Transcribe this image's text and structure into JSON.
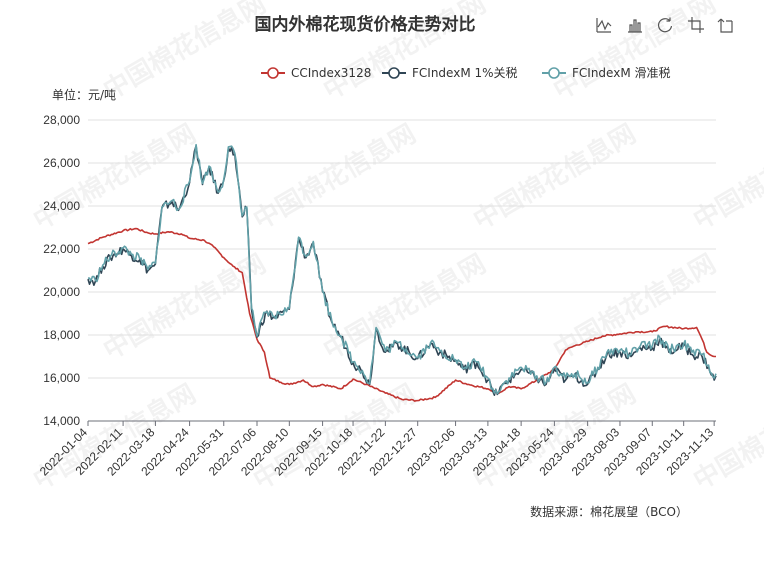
{
  "toolbox": {
    "icons": [
      "line-chart-icon",
      "bar-chart-icon",
      "restore-icon",
      "data-zoom-icon",
      "zoom-reset-icon"
    ]
  },
  "watermark_text": "中国棉花信息网",
  "chart_data": {
    "type": "line",
    "title": "国内外棉花现货价格走势对比",
    "unit_label": "单位：元/吨",
    "source": "数据来源：棉花展望（BCO）",
    "x_range": [
      "2022-01-04",
      "2023-11-15"
    ],
    "x_ticks": [
      "2022-01-04",
      "2022-02-11",
      "2022-03-18",
      "2022-04-24",
      "2022-05-31",
      "2022-07-06",
      "2022-08-10",
      "2022-09-15",
      "2022-10-18",
      "2022-11-22",
      "2022-12-27",
      "2023-02-06",
      "2023-03-13",
      "2023-04-18",
      "2023-05-24",
      "2023-06-29",
      "2023-08-03",
      "2023-09-07",
      "2023-10-11",
      "2023-11-13"
    ],
    "ylim": [
      14000,
      28000
    ],
    "y_ticks": [
      14000,
      16000,
      18000,
      20000,
      22000,
      24000,
      26000,
      28000
    ],
    "y_tick_labels": [
      "14,000",
      "16,000",
      "18,000",
      "20,000",
      "22,000",
      "24,000",
      "26,000",
      "28,000"
    ],
    "grid": true,
    "legend_position": "top-right",
    "series": [
      {
        "name": "CCIndex3128",
        "color": "#c23531",
        "points": [
          [
            "2022-01-04",
            22250
          ],
          [
            "2022-01-20",
            22550
          ],
          [
            "2022-02-11",
            22850
          ],
          [
            "2022-02-25",
            22950
          ],
          [
            "2022-03-10",
            22750
          ],
          [
            "2022-03-18",
            22700
          ],
          [
            "2022-04-01",
            22800
          ],
          [
            "2022-04-15",
            22700
          ],
          [
            "2022-04-24",
            22500
          ],
          [
            "2022-05-10",
            22400
          ],
          [
            "2022-05-20",
            22100
          ],
          [
            "2022-05-31",
            21600
          ],
          [
            "2022-06-10",
            21200
          ],
          [
            "2022-06-20",
            20900
          ],
          [
            "2022-06-28",
            19000
          ],
          [
            "2022-07-06",
            17800
          ],
          [
            "2022-07-14",
            17200
          ],
          [
            "2022-07-20",
            16000
          ],
          [
            "2022-08-01",
            15800
          ],
          [
            "2022-08-10",
            15700
          ],
          [
            "2022-08-25",
            15900
          ],
          [
            "2022-09-05",
            15600
          ],
          [
            "2022-09-15",
            15700
          ],
          [
            "2022-10-05",
            15500
          ],
          [
            "2022-10-18",
            15950
          ],
          [
            "2022-11-01",
            15700
          ],
          [
            "2022-11-22",
            15300
          ],
          [
            "2022-12-10",
            15000
          ],
          [
            "2022-12-27",
            14950
          ],
          [
            "2023-01-15",
            15100
          ],
          [
            "2023-02-06",
            15900
          ],
          [
            "2023-02-20",
            15700
          ],
          [
            "2023-03-13",
            15500
          ],
          [
            "2023-03-25",
            15300
          ],
          [
            "2023-04-05",
            15600
          ],
          [
            "2023-04-18",
            15500
          ],
          [
            "2023-05-05",
            15900
          ],
          [
            "2023-05-24",
            16400
          ],
          [
            "2023-06-05",
            17300
          ],
          [
            "2023-06-15",
            17500
          ],
          [
            "2023-06-29",
            17700
          ],
          [
            "2023-07-15",
            17950
          ],
          [
            "2023-08-03",
            18050
          ],
          [
            "2023-08-20",
            18150
          ],
          [
            "2023-09-07",
            18150
          ],
          [
            "2023-09-20",
            18400
          ],
          [
            "2023-10-11",
            18300
          ],
          [
            "2023-10-25",
            18350
          ],
          [
            "2023-10-31",
            17800
          ],
          [
            "2023-11-05",
            17200
          ],
          [
            "2023-11-13",
            17000
          ],
          [
            "2023-11-15",
            17000
          ]
        ]
      },
      {
        "name": "FCIndexM 1%关税",
        "color": "#2f4554",
        "points": [
          [
            "2022-01-04",
            20600
          ],
          [
            "2022-01-12",
            20500
          ],
          [
            "2022-01-20",
            21200
          ],
          [
            "2022-01-28",
            21600
          ],
          [
            "2022-02-11",
            22000
          ],
          [
            "2022-02-20",
            21700
          ],
          [
            "2022-03-01",
            21500
          ],
          [
            "2022-03-10",
            21000
          ],
          [
            "2022-03-18",
            21300
          ],
          [
            "2022-03-25",
            23900
          ],
          [
            "2022-04-05",
            24200
          ],
          [
            "2022-04-12",
            23800
          ],
          [
            "2022-04-24",
            25100
          ],
          [
            "2022-05-01",
            26800
          ],
          [
            "2022-05-08",
            25000
          ],
          [
            "2022-05-15",
            25800
          ],
          [
            "2022-05-25",
            24600
          ],
          [
            "2022-05-31",
            25200
          ],
          [
            "2022-06-05",
            26700
          ],
          [
            "2022-06-12",
            26400
          ],
          [
            "2022-06-20",
            23500
          ],
          [
            "2022-06-25",
            23900
          ],
          [
            "2022-06-30",
            19200
          ],
          [
            "2022-07-06",
            17900
          ],
          [
            "2022-07-15",
            19000
          ],
          [
            "2022-07-25",
            18800
          ],
          [
            "2022-08-10",
            19200
          ],
          [
            "2022-08-20",
            22500
          ],
          [
            "2022-08-28",
            21600
          ],
          [
            "2022-09-05",
            22300
          ],
          [
            "2022-09-15",
            20000
          ],
          [
            "2022-09-25",
            18600
          ],
          [
            "2022-10-05",
            17900
          ],
          [
            "2022-10-18",
            16700
          ],
          [
            "2022-10-28",
            16300
          ],
          [
            "2022-11-05",
            15700
          ],
          [
            "2022-11-12",
            18300
          ],
          [
            "2022-11-22",
            17200
          ],
          [
            "2022-12-05",
            17600
          ],
          [
            "2022-12-27",
            16900
          ],
          [
            "2023-01-10",
            17600
          ],
          [
            "2023-01-20",
            17200
          ],
          [
            "2023-02-06",
            16800
          ],
          [
            "2023-02-15",
            16400
          ],
          [
            "2023-03-01",
            16700
          ],
          [
            "2023-03-13",
            15900
          ],
          [
            "2023-03-20",
            15200
          ],
          [
            "2023-04-05",
            15900
          ],
          [
            "2023-04-18",
            16400
          ],
          [
            "2023-05-05",
            16000
          ],
          [
            "2023-05-15",
            15700
          ],
          [
            "2023-05-24",
            16400
          ],
          [
            "2023-06-05",
            15900
          ],
          [
            "2023-06-15",
            16100
          ],
          [
            "2023-06-29",
            15700
          ],
          [
            "2023-07-10",
            16400
          ],
          [
            "2023-07-20",
            17100
          ],
          [
            "2023-08-03",
            17200
          ],
          [
            "2023-08-15",
            17000
          ],
          [
            "2023-08-25",
            17400
          ],
          [
            "2023-09-07",
            17400
          ],
          [
            "2023-09-15",
            17800
          ],
          [
            "2023-09-25",
            17200
          ],
          [
            "2023-10-11",
            17500
          ],
          [
            "2023-10-20",
            17100
          ],
          [
            "2023-10-31",
            17000
          ],
          [
            "2023-11-07",
            16500
          ],
          [
            "2023-11-13",
            15900
          ],
          [
            "2023-11-15",
            16100
          ]
        ]
      },
      {
        "name": "FCIndexM 滑准税",
        "color": "#61a0a8",
        "points": [
          [
            "2022-01-04",
            20650
          ],
          [
            "2022-01-12",
            20550
          ],
          [
            "2022-01-20",
            21250
          ],
          [
            "2022-01-28",
            21650
          ],
          [
            "2022-02-11",
            22050
          ],
          [
            "2022-02-20",
            21750
          ],
          [
            "2022-03-01",
            21550
          ],
          [
            "2022-03-10",
            21050
          ],
          [
            "2022-03-18",
            21350
          ],
          [
            "2022-03-25",
            23950
          ],
          [
            "2022-04-05",
            24250
          ],
          [
            "2022-04-12",
            23850
          ],
          [
            "2022-04-24",
            25150
          ],
          [
            "2022-05-01",
            26850
          ],
          [
            "2022-05-08",
            25050
          ],
          [
            "2022-05-15",
            25850
          ],
          [
            "2022-05-25",
            24650
          ],
          [
            "2022-05-31",
            25250
          ],
          [
            "2022-06-05",
            26750
          ],
          [
            "2022-06-12",
            26450
          ],
          [
            "2022-06-20",
            23550
          ],
          [
            "2022-06-25",
            23950
          ],
          [
            "2022-06-30",
            19250
          ],
          [
            "2022-07-06",
            17950
          ],
          [
            "2022-07-15",
            19050
          ],
          [
            "2022-07-25",
            18850
          ],
          [
            "2022-08-10",
            19250
          ],
          [
            "2022-08-20",
            22550
          ],
          [
            "2022-08-28",
            21650
          ],
          [
            "2022-09-05",
            22350
          ],
          [
            "2022-09-15",
            20050
          ],
          [
            "2022-09-25",
            18650
          ],
          [
            "2022-10-05",
            17950
          ],
          [
            "2022-10-18",
            16750
          ],
          [
            "2022-10-28",
            16350
          ],
          [
            "2022-11-05",
            15750
          ],
          [
            "2022-11-12",
            18350
          ],
          [
            "2022-11-22",
            17250
          ],
          [
            "2022-12-05",
            17650
          ],
          [
            "2022-12-27",
            16950
          ],
          [
            "2023-01-10",
            17650
          ],
          [
            "2023-01-20",
            17250
          ],
          [
            "2023-02-06",
            16850
          ],
          [
            "2023-02-15",
            16450
          ],
          [
            "2023-03-01",
            16750
          ],
          [
            "2023-03-13",
            16000
          ],
          [
            "2023-03-20",
            15300
          ],
          [
            "2023-04-05",
            16000
          ],
          [
            "2023-04-18",
            16500
          ],
          [
            "2023-05-05",
            16100
          ],
          [
            "2023-05-15",
            15800
          ],
          [
            "2023-05-24",
            16500
          ],
          [
            "2023-06-05",
            16000
          ],
          [
            "2023-06-15",
            16200
          ],
          [
            "2023-06-29",
            15800
          ],
          [
            "2023-07-10",
            16500
          ],
          [
            "2023-07-20",
            17200
          ],
          [
            "2023-08-03",
            17300
          ],
          [
            "2023-08-15",
            17100
          ],
          [
            "2023-08-25",
            17500
          ],
          [
            "2023-09-07",
            17500
          ],
          [
            "2023-09-15",
            17900
          ],
          [
            "2023-09-25",
            17300
          ],
          [
            "2023-10-11",
            17600
          ],
          [
            "2023-10-20",
            17200
          ],
          [
            "2023-10-31",
            17100
          ],
          [
            "2023-11-07",
            16600
          ],
          [
            "2023-11-13",
            16000
          ],
          [
            "2023-11-15",
            16200
          ]
        ]
      }
    ]
  }
}
